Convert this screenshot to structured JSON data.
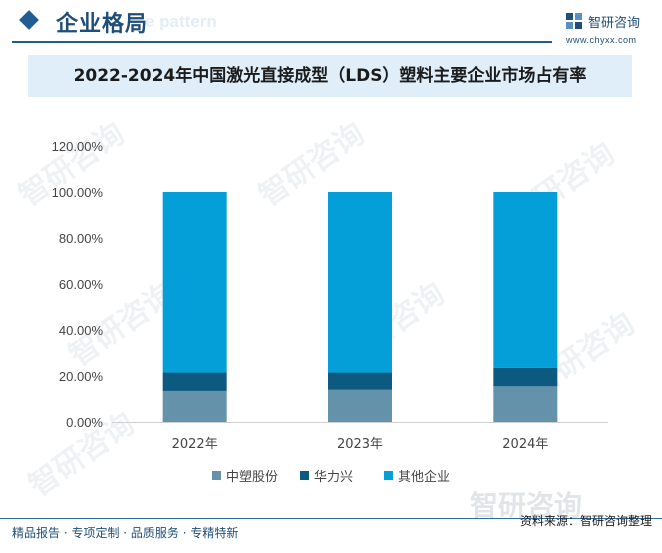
{
  "header": {
    "section_title": "企业格局",
    "ghost_text": "e pattern",
    "logo_name": "智研咨询",
    "logo_url": "www.chyxx.com"
  },
  "chart_title": "2022-2024年中国激光直接成型（LDS）塑料主要企业市场占有率",
  "chart_data": {
    "type": "bar",
    "stacked": true,
    "categories": [
      "2022年",
      "2023年",
      "2024年"
    ],
    "series": [
      {
        "name": "中塑股份",
        "values": [
          13.5,
          14.0,
          15.5
        ],
        "color": "#6592ab"
      },
      {
        "name": "华力兴",
        "values": [
          8.0,
          7.5,
          8.0
        ],
        "color": "#0d5a80"
      },
      {
        "name": "其他企业",
        "values": [
          78.5,
          78.5,
          76.5
        ],
        "color": "#049fd9"
      }
    ],
    "ylim": [
      0,
      120
    ],
    "yticks": [
      "0.00%",
      "20.00%",
      "40.00%",
      "60.00%",
      "80.00%",
      "100.00%",
      "120.00%"
    ],
    "ytick_values": [
      0,
      20,
      40,
      60,
      80,
      100,
      120
    ],
    "grid": false,
    "legend": "bottom"
  },
  "footer": {
    "left": "精品报告 · 专项定制 · 品质服务 · 专精特新",
    "right": "资料来源：智研咨询整理",
    "watermark": "智研咨询"
  }
}
